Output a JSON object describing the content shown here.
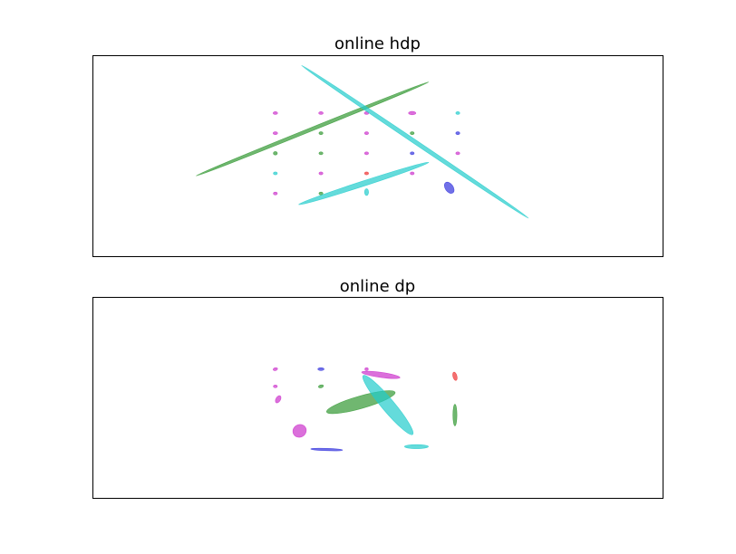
{
  "colors": {
    "magenta": "#cc33cc",
    "green": "#339933",
    "cyan": "#22cccc",
    "blue": "#3333dd",
    "red": "#ee3333"
  },
  "chart_data": [
    {
      "type": "scatter",
      "title": "online hdp",
      "xlabel": "",
      "ylabel": "",
      "xlim": [
        -10,
        10
      ],
      "ylim": [
        -7,
        7
      ],
      "grid": false,
      "ticks": false,
      "marker": "ellipse",
      "ellipses": [
        {
          "cx": -3.6,
          "cy": 3.0,
          "rx": 0.08,
          "ry": 0.05,
          "angle": 0,
          "color": "magenta"
        },
        {
          "cx": -2.0,
          "cy": 3.0,
          "rx": 0.08,
          "ry": 0.05,
          "angle": 0,
          "color": "magenta"
        },
        {
          "cx": -0.4,
          "cy": 3.0,
          "rx": 0.08,
          "ry": 0.05,
          "angle": 0,
          "color": "magenta"
        },
        {
          "cx": 1.2,
          "cy": 3.0,
          "rx": 0.13,
          "ry": 0.06,
          "angle": 0,
          "color": "magenta"
        },
        {
          "cx": 2.8,
          "cy": 3.0,
          "rx": 0.07,
          "ry": 0.05,
          "angle": 0,
          "color": "cyan"
        },
        {
          "cx": -3.6,
          "cy": 1.6,
          "rx": 0.08,
          "ry": 0.05,
          "angle": 0,
          "color": "magenta"
        },
        {
          "cx": -2.0,
          "cy": 1.6,
          "rx": 0.07,
          "ry": 0.05,
          "angle": 0,
          "color": "green"
        },
        {
          "cx": -0.4,
          "cy": 1.6,
          "rx": 0.07,
          "ry": 0.05,
          "angle": 0,
          "color": "magenta"
        },
        {
          "cx": 1.2,
          "cy": 1.6,
          "rx": 0.07,
          "ry": 0.05,
          "angle": 0,
          "color": "green"
        },
        {
          "cx": 2.8,
          "cy": 1.6,
          "rx": 0.07,
          "ry": 0.05,
          "angle": 0,
          "color": "blue"
        },
        {
          "cx": -3.6,
          "cy": 0.2,
          "rx": 0.07,
          "ry": 0.06,
          "angle": 0,
          "color": "green"
        },
        {
          "cx": -2.0,
          "cy": 0.2,
          "rx": 0.07,
          "ry": 0.05,
          "angle": 0,
          "color": "green"
        },
        {
          "cx": -0.4,
          "cy": 0.2,
          "rx": 0.07,
          "ry": 0.05,
          "angle": 0,
          "color": "magenta"
        },
        {
          "cx": 1.2,
          "cy": 0.2,
          "rx": 0.07,
          "ry": 0.05,
          "angle": 0,
          "color": "blue"
        },
        {
          "cx": 2.8,
          "cy": 0.2,
          "rx": 0.07,
          "ry": 0.05,
          "angle": 0,
          "color": "magenta"
        },
        {
          "cx": -3.6,
          "cy": -1.2,
          "rx": 0.07,
          "ry": 0.05,
          "angle": 0,
          "color": "cyan"
        },
        {
          "cx": -2.0,
          "cy": -1.2,
          "rx": 0.07,
          "ry": 0.05,
          "angle": 0,
          "color": "magenta"
        },
        {
          "cx": -0.4,
          "cy": -1.2,
          "rx": 0.07,
          "ry": 0.05,
          "angle": 0,
          "color": "red"
        },
        {
          "cx": 1.2,
          "cy": -1.2,
          "rx": 0.07,
          "ry": 0.05,
          "angle": 0,
          "color": "magenta"
        },
        {
          "cx": -3.6,
          "cy": -2.6,
          "rx": 0.07,
          "ry": 0.05,
          "angle": 0,
          "color": "magenta"
        },
        {
          "cx": -2.0,
          "cy": -2.6,
          "rx": 0.07,
          "ry": 0.05,
          "angle": 0,
          "color": "green"
        },
        {
          "cx": -0.4,
          "cy": -2.5,
          "rx": 0.07,
          "ry": 0.12,
          "angle": 0,
          "color": "cyan"
        },
        {
          "cx": 2.5,
          "cy": -2.2,
          "rx": 0.14,
          "ry": 0.22,
          "angle": 35,
          "color": "blue"
        },
        {
          "cx": -2.3,
          "cy": 1.9,
          "rx": 4.4,
          "ry": 0.06,
          "angle": 22,
          "color": "green"
        },
        {
          "cx": 1.3,
          "cy": 1.0,
          "rx": 4.8,
          "ry": 0.07,
          "angle": -34,
          "color": "cyan"
        },
        {
          "cx": -0.5,
          "cy": -1.9,
          "rx": 2.4,
          "ry": 0.09,
          "angle": 18,
          "color": "cyan"
        }
      ]
    },
    {
      "type": "scatter",
      "title": "online dp",
      "xlabel": "",
      "ylabel": "",
      "xlim": [
        -10,
        10
      ],
      "ylim": [
        -7,
        7
      ],
      "grid": false,
      "ticks": false,
      "marker": "ellipse",
      "ellipses": [
        {
          "cx": -3.6,
          "cy": 2.0,
          "rx": 0.08,
          "ry": 0.05,
          "angle": 15,
          "color": "magenta"
        },
        {
          "cx": -2.0,
          "cy": 2.0,
          "rx": 0.11,
          "ry": 0.05,
          "angle": 0,
          "color": "blue"
        },
        {
          "cx": -0.4,
          "cy": 2.0,
          "rx": 0.06,
          "ry": 0.05,
          "angle": 0,
          "color": "magenta"
        },
        {
          "cx": 0.1,
          "cy": 1.6,
          "rx": 0.68,
          "ry": 0.09,
          "angle": -8,
          "color": "magenta"
        },
        {
          "cx": 2.7,
          "cy": 1.5,
          "rx": 0.07,
          "ry": 0.15,
          "angle": 15,
          "color": "red"
        },
        {
          "cx": -3.6,
          "cy": 0.8,
          "rx": 0.07,
          "ry": 0.05,
          "angle": 0,
          "color": "magenta"
        },
        {
          "cx": -2.0,
          "cy": 0.8,
          "rx": 0.09,
          "ry": 0.05,
          "angle": 15,
          "color": "green"
        },
        {
          "cx": -3.5,
          "cy": -0.1,
          "rx": 0.08,
          "ry": 0.14,
          "angle": -30,
          "color": "magenta"
        },
        {
          "cx": -0.6,
          "cy": -0.3,
          "rx": 1.25,
          "ry": 0.22,
          "angle": 16,
          "color": "green"
        },
        {
          "cx": 0.35,
          "cy": -0.5,
          "rx": 1.35,
          "ry": 0.22,
          "angle": -50,
          "color": "cyan"
        },
        {
          "cx": 2.7,
          "cy": -1.2,
          "rx": 0.07,
          "ry": 0.38,
          "angle": 0,
          "color": "green"
        },
        {
          "cx": -2.75,
          "cy": -2.3,
          "rx": 0.24,
          "ry": 0.22,
          "angle": 30,
          "color": "magenta"
        },
        {
          "cx": -1.8,
          "cy": -3.6,
          "rx": 0.56,
          "ry": 0.04,
          "angle": -2,
          "color": "blue"
        },
        {
          "cx": 1.35,
          "cy": -3.4,
          "rx": 0.42,
          "ry": 0.07,
          "angle": 0,
          "color": "cyan"
        }
      ]
    }
  ]
}
